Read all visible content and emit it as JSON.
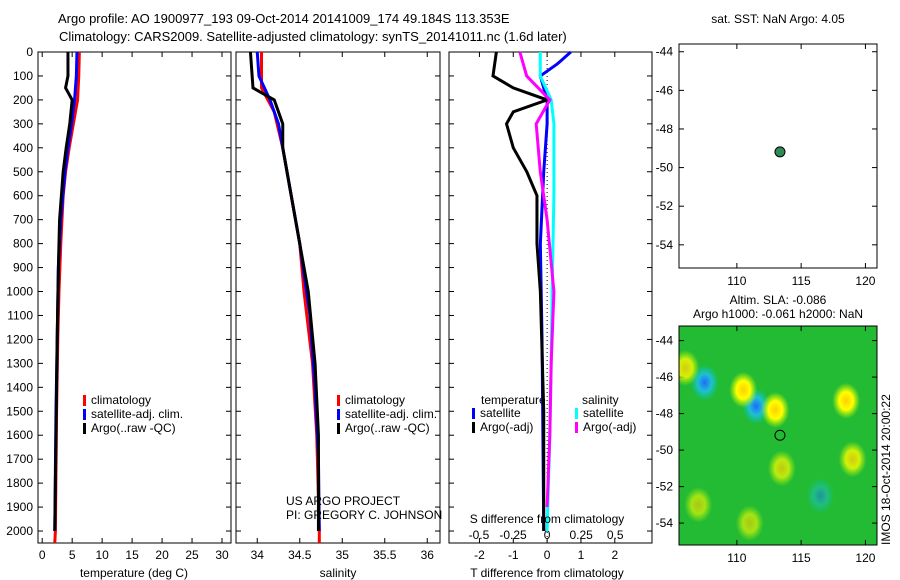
{
  "title_line1": "Argo profile: AO 1900977_193 09-Oct-2014 20141009_174 49.184S 113.353E",
  "title_line2": "Climatology: CARS2009. Satellite-adjusted climatology: synTS_20141011.nc (1.6d later)",
  "colors": {
    "climatology": "#ff0000",
    "satellite": "#0000ff",
    "argo": "#000000",
    "sal_sat": "#00ffff",
    "sal_argo": "#ff00ff"
  },
  "chart_data": [
    {
      "type": "line",
      "id": "temp",
      "xlabel": "temperature (deg C)",
      "ylabel": "",
      "xlim": [
        -0.7,
        31.5
      ],
      "ylim": [
        0,
        2050
      ],
      "xticks": [
        0,
        5,
        10,
        15,
        20,
        25,
        30
      ],
      "yticks": [
        0,
        100,
        200,
        300,
        400,
        500,
        600,
        700,
        800,
        900,
        1000,
        1100,
        1200,
        1300,
        1400,
        1500,
        1600,
        1700,
        1800,
        1900,
        2000
      ],
      "legend": [
        "climatology",
        "satellite-adj. clim.",
        "Argo(..raw -QC)"
      ],
      "series": [
        {
          "name": "climatology",
          "color": "#ff0000",
          "depth": [
            0,
            100,
            200,
            300,
            400,
            500,
            600,
            700,
            800,
            1000,
            1200,
            1500,
            2000,
            2050
          ],
          "values": [
            6.2,
            6.1,
            5.9,
            5.2,
            4.5,
            3.9,
            3.5,
            3.3,
            3.1,
            2.8,
            2.6,
            2.4,
            2.2,
            2.1
          ]
        },
        {
          "name": "satellite-adj. clim.",
          "color": "#0000ff",
          "depth": [
            0,
            100,
            200,
            300,
            400,
            500,
            700,
            900,
            1200,
            1500,
            2000
          ],
          "values": [
            5.8,
            5.7,
            5.4,
            4.9,
            4.3,
            3.8,
            3.1,
            2.7,
            2.5,
            2.3,
            2.1
          ]
        },
        {
          "name": "Argo(..raw -QC)",
          "color": "#000000",
          "depth": [
            0,
            100,
            150,
            200,
            300,
            400,
            500,
            700,
            900,
            1200,
            1600,
            2000
          ],
          "values": [
            4.3,
            4.3,
            3.9,
            5.0,
            4.6,
            4.0,
            3.5,
            2.9,
            2.7,
            2.5,
            2.3,
            2.1
          ]
        }
      ]
    },
    {
      "type": "line",
      "id": "sal",
      "xlabel": "salinity",
      "xlim": [
        33.75,
        36.15
      ],
      "ylim": [
        0,
        2050
      ],
      "xticks": [
        34,
        34.5,
        35,
        35.5,
        36
      ],
      "legend": [
        "climatology",
        "satellite-adj. clim.",
        "Argo(..raw -QC)"
      ],
      "annotation": [
        "US ARGO PROJECT",
        "PI: GREGORY C. JOHNSON"
      ],
      "series": [
        {
          "name": "climatology",
          "color": "#ff0000",
          "depth": [
            0,
            150,
            250,
            400,
            600,
            800,
            1000,
            1300,
            1600,
            2000,
            2050
          ],
          "values": [
            34.05,
            34.05,
            34.2,
            34.3,
            34.4,
            34.5,
            34.55,
            34.65,
            34.7,
            34.73,
            34.73
          ]
        },
        {
          "name": "satellite-adj. clim.",
          "color": "#0000ff",
          "depth": [
            0,
            100,
            200,
            300,
            500,
            800,
            1100,
            1400,
            1700,
            2000
          ],
          "values": [
            34.0,
            34.02,
            34.15,
            34.25,
            34.35,
            34.5,
            34.62,
            34.68,
            34.72,
            34.73
          ]
        },
        {
          "name": "Argo(..raw -QC)",
          "color": "#000000",
          "depth": [
            0,
            150,
            200,
            250,
            300,
            400,
            500,
            700,
            1000,
            1300,
            1600,
            2000
          ],
          "values": [
            33.92,
            33.95,
            34.2,
            34.25,
            34.3,
            34.3,
            34.35,
            34.45,
            34.6,
            34.68,
            34.72,
            34.72
          ]
        }
      ]
    },
    {
      "type": "line",
      "id": "diff",
      "xlabel": "T difference from climatology",
      "x2label": "S difference from climatology",
      "xlim": [
        -2.9,
        3.1
      ],
      "x2lim": [
        -0.72,
        0.77
      ],
      "ylim": [
        0,
        2050
      ],
      "xticks": [
        -2,
        -1,
        0,
        1,
        2
      ],
      "x2ticks": [
        -0.5,
        -0.25,
        0,
        0.25,
        0.5
      ],
      "legend_titles": [
        "temperature",
        "salinity"
      ],
      "legend": [
        "satellite",
        "Argo(-adj)",
        "satellite",
        "Argo(-adj)"
      ],
      "series": [
        {
          "name": "T satellite",
          "axis": "T",
          "color": "#0000ff",
          "depth": [
            0,
            50,
            100,
            200,
            300,
            500,
            800,
            1200,
            2000
          ],
          "values": [
            0.7,
            0.3,
            -0.2,
            0,
            0,
            -0.1,
            -0.2,
            -0.15,
            -0.1
          ]
        },
        {
          "name": "T Argo(-adj)",
          "axis": "T",
          "color": "#000000",
          "depth": [
            0,
            100,
            150,
            200,
            250,
            300,
            400,
            500,
            600,
            800,
            1000,
            1500,
            2000
          ],
          "values": [
            -1.5,
            -1.6,
            -1.0,
            0,
            -1.0,
            -1.2,
            -1.0,
            -0.6,
            -0.3,
            -0.3,
            -0.2,
            -0.1,
            -0.1
          ]
        },
        {
          "name": "S satellite",
          "axis": "S",
          "color": "#00ffff",
          "depth": [
            0,
            100,
            200,
            300,
            600,
            900,
            1300,
            1600,
            2000
          ],
          "values": [
            -0.05,
            -0.05,
            0.03,
            0.05,
            0.05,
            0.04,
            0.03,
            0.02,
            0.0
          ]
        },
        {
          "name": "S Argo(-adj)",
          "axis": "S",
          "color": "#ff00ff",
          "depth": [
            0,
            100,
            200,
            300,
            500,
            700,
            1000,
            1300,
            1600,
            1900
          ],
          "values": [
            -0.2,
            -0.15,
            0.02,
            -0.08,
            -0.05,
            0.0,
            0.05,
            0.03,
            0.02,
            0.0
          ]
        }
      ]
    },
    {
      "type": "scatter",
      "id": "sst_map",
      "title": "sat. SST: NaN Argo: 4.05",
      "xlim": [
        105.5,
        120.9
      ],
      "ylim": [
        -55.2,
        -43.6
      ],
      "xticks": [
        110,
        115,
        120
      ],
      "yticks": [
        -44,
        -46,
        -48,
        -50,
        -52,
        -54
      ],
      "point": {
        "lon": 113.353,
        "lat": -49.184
      }
    },
    {
      "type": "heatmap",
      "id": "sla_map",
      "title_line1": "Altim. SLA: -0.086",
      "title_line2": "Argo h1000: -0.061 h2000: NaN",
      "side_label": "IMOS 18-Oct-2014 20:00:22",
      "xlim": [
        105.5,
        120.9
      ],
      "ylim": [
        -55.2,
        -43.2
      ],
      "xticks": [
        110,
        115,
        120
      ],
      "yticks": [
        -44,
        -46,
        -48,
        -50,
        -52,
        -54
      ],
      "point": {
        "lon": 113.353,
        "lat": -49.184
      },
      "blobs": [
        {
          "lon": 107.5,
          "lat": -46.3,
          "v": -1
        },
        {
          "lon": 111.5,
          "lat": -47.6,
          "v": -1
        },
        {
          "lon": 110.5,
          "lat": -46.7,
          "v": 1
        },
        {
          "lon": 113,
          "lat": -47.8,
          "v": 1
        },
        {
          "lon": 118.5,
          "lat": -47.3,
          "v": 1
        },
        {
          "lon": 106,
          "lat": -45.5,
          "v": 0.8
        },
        {
          "lon": 119,
          "lat": -50.5,
          "v": 0.8
        },
        {
          "lon": 113.5,
          "lat": -51,
          "v": 0.7
        },
        {
          "lon": 116.5,
          "lat": -52.5,
          "v": -0.5
        },
        {
          "lon": 111,
          "lat": -54,
          "v": 0.6
        },
        {
          "lon": 107,
          "lat": -53,
          "v": 0.6
        }
      ]
    }
  ]
}
